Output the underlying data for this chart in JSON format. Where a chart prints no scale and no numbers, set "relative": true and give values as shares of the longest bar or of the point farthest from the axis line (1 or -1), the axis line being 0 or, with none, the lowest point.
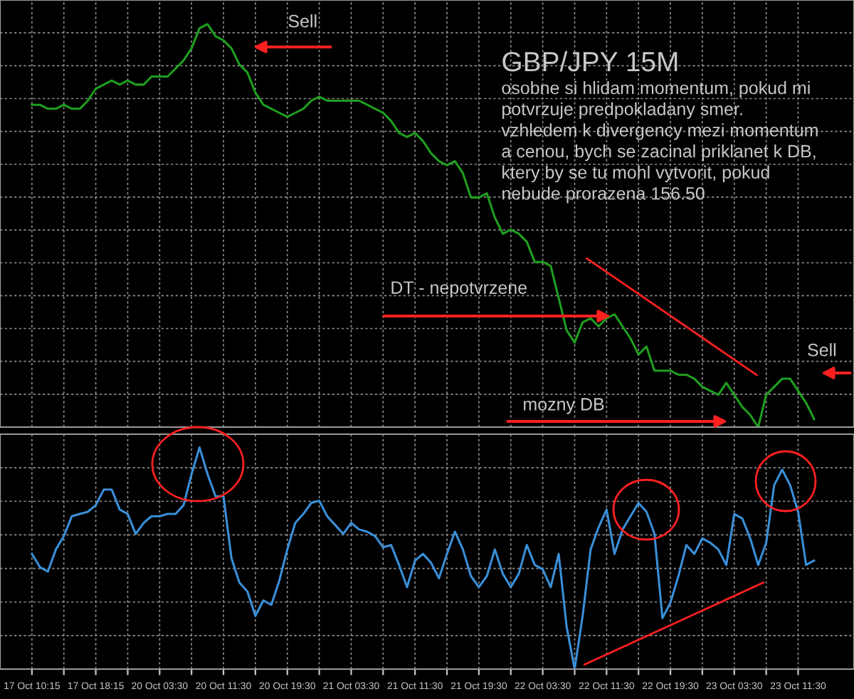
{
  "chart_data": [
    {
      "type": "line",
      "relative": true,
      "grid": true,
      "tick_labels": false,
      "categories": [
        null,
        null,
        null,
        null,
        null,
        null,
        null,
        null,
        null,
        null,
        null,
        null,
        null,
        null,
        null,
        null,
        null,
        null,
        null,
        null,
        null,
        null,
        null,
        null,
        null,
        null,
        null,
        null,
        null,
        null,
        null,
        null,
        null,
        null,
        null,
        null,
        null,
        null,
        null,
        null,
        null,
        null,
        null,
        null,
        null,
        null,
        null,
        null,
        null,
        null,
        null,
        null,
        null,
        null,
        null,
        null,
        null,
        null,
        null,
        null,
        null,
        null,
        null,
        null,
        null,
        null,
        null,
        null,
        null,
        null,
        null,
        null,
        null,
        null,
        null,
        null,
        null,
        null,
        null,
        null,
        null,
        null,
        null,
        null,
        null,
        null,
        null,
        null,
        null,
        null,
        null,
        null,
        null,
        null,
        null,
        null,
        null,
        null,
        null
      ],
      "series": [
        {
          "color": "#1f9e1f",
          "values": [
            0.8,
            0.8,
            0.79,
            0.79,
            0.8,
            0.79,
            0.79,
            0.81,
            0.84,
            0.85,
            0.86,
            0.85,
            0.86,
            0.85,
            0.85,
            0.87,
            0.87,
            0.87,
            0.89,
            0.91,
            0.94,
            0.99,
            1.0,
            0.97,
            0.96,
            0.94,
            0.9,
            0.88,
            0.83,
            0.8,
            0.79,
            0.78,
            0.77,
            0.78,
            0.79,
            0.81,
            0.82,
            0.81,
            0.81,
            0.81,
            0.81,
            0.81,
            0.8,
            0.79,
            0.78,
            0.76,
            0.73,
            0.72,
            0.73,
            0.71,
            0.68,
            0.66,
            0.65,
            0.66,
            0.63,
            0.57,
            0.57,
            0.58,
            0.52,
            0.48,
            0.49,
            0.48,
            0.46,
            0.41,
            0.41,
            0.4,
            0.32,
            0.24,
            0.21,
            0.26,
            0.27,
            0.25,
            0.27,
            0.28,
            0.25,
            0.22,
            0.18,
            0.2,
            0.14,
            0.14,
            0.14,
            0.13,
            0.13,
            0.12,
            0.1,
            0.09,
            0.08,
            0.11,
            0.08,
            0.05,
            0.03,
            0.0,
            0.08,
            0.1,
            0.12,
            0.12,
            0.09,
            0.06,
            0.02
          ]
        }
      ],
      "annotations": [
        "Sell",
        "GBP/JPY 15M",
        "osobne si hlidam momentum, pokud mi\npotvrzuje predpokladany smer.\nvzhledem k divergency mezi momentum\na cenou, bych se zacinal priklanet k DB,\nktery by se tu mohl vytvorit, pokud\nnebude prorazena 156.50",
        "DT - nepotvrzene",
        "mozny DB",
        "Sell"
      ]
    },
    {
      "type": "line",
      "relative": true,
      "grid": true,
      "tick_labels": "x",
      "categories": [
        "17 Oct 10:15",
        null,
        null,
        null,
        null,
        null,
        null,
        null,
        "17 Oct 18:15",
        null,
        null,
        null,
        null,
        null,
        null,
        null,
        "20 Oct 03:30",
        null,
        null,
        null,
        null,
        null,
        null,
        null,
        "20 Oct 11:30",
        null,
        null,
        null,
        null,
        null,
        null,
        null,
        "20 Oct 19:30",
        null,
        null,
        null,
        null,
        null,
        null,
        null,
        "21 Oct 03:30",
        null,
        null,
        null,
        null,
        null,
        null,
        null,
        "21 Oct 11:30",
        null,
        null,
        null,
        null,
        null,
        null,
        null,
        "21 Oct 19:30",
        null,
        null,
        null,
        null,
        null,
        null,
        null,
        "22 Oct 03:30",
        null,
        null,
        null,
        null,
        null,
        null,
        null,
        "22 Oct 11:30",
        null,
        null,
        null,
        null,
        null,
        null,
        null,
        "22 Oct 19:30",
        null,
        null,
        null,
        null,
        null,
        null,
        null,
        "23 Oct 03:30",
        null,
        null,
        null,
        null,
        null,
        null,
        null,
        "23 Oct 11:30",
        null,
        null
      ],
      "series": [
        {
          "color": "#3a8fd8",
          "values": [
            0.52,
            0.46,
            0.44,
            0.54,
            0.6,
            0.69,
            0.7,
            0.71,
            0.74,
            0.81,
            0.81,
            0.72,
            0.7,
            0.61,
            0.66,
            0.69,
            0.69,
            0.7,
            0.7,
            0.74,
            0.88,
            1.0,
            0.88,
            0.78,
            0.78,
            0.5,
            0.39,
            0.35,
            0.24,
            0.31,
            0.29,
            0.4,
            0.54,
            0.66,
            0.7,
            0.75,
            0.76,
            0.69,
            0.65,
            0.61,
            0.66,
            0.63,
            0.62,
            0.6,
            0.55,
            0.56,
            0.47,
            0.37,
            0.49,
            0.52,
            0.48,
            0.41,
            0.52,
            0.62,
            0.54,
            0.42,
            0.37,
            0.42,
            0.54,
            0.43,
            0.37,
            0.43,
            0.56,
            0.47,
            0.45,
            0.37,
            0.52,
            0.19,
            0.0,
            0.24,
            0.54,
            0.64,
            0.72,
            0.52,
            0.63,
            0.69,
            0.75,
            0.71,
            0.61,
            0.23,
            0.3,
            0.42,
            0.56,
            0.52,
            0.59,
            0.57,
            0.54,
            0.47,
            0.7,
            0.68,
            0.59,
            0.47,
            0.57,
            0.83,
            0.9,
            0.83,
            0.71,
            0.47,
            0.49
          ]
        }
      ]
    }
  ]
}
